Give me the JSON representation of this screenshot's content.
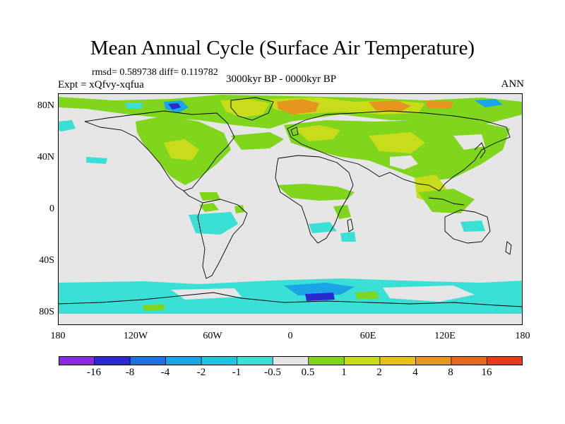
{
  "title": "Mean Annual Cycle (Surface Air Temperature)",
  "stats": "rmsd= 0.589738 diff= 0.119782",
  "experiment": "Expt = xQfvy-xqfua",
  "period": "3000kyr BP - 0000kyr BP",
  "season": "ANN",
  "latitude_labels": [
    "80N",
    "40N",
    "0",
    "40S",
    "80S"
  ],
  "longitude_labels": [
    "180",
    "120W",
    "60W",
    "0",
    "60E",
    "120E",
    "180"
  ],
  "colorbar": {
    "labels": [
      "-16",
      "-8",
      "-4",
      "-2",
      "-1",
      "-0.5",
      "0.5",
      "1",
      "2",
      "4",
      "8",
      "16"
    ],
    "colors": [
      "#8a2be2",
      "#2a2ad0",
      "#1e6fe0",
      "#1aa6e6",
      "#20c6e0",
      "#3ae0d6",
      "#e6e6e6",
      "#7fd61c",
      "#c8dc1a",
      "#e6c21a",
      "#e6961e",
      "#e66a1e",
      "#e63a1a"
    ]
  },
  "colors": {
    "land_neutral": "#e6e6e6",
    "warm_small": "#7fd61c",
    "warm_mid": "#c8dc1a",
    "warm_high": "#e6961e",
    "cool_small": "#3ae0d6",
    "cool_mid": "#1aa6e6",
    "cool_high": "#2a2ad0",
    "coast": "#000000"
  }
}
